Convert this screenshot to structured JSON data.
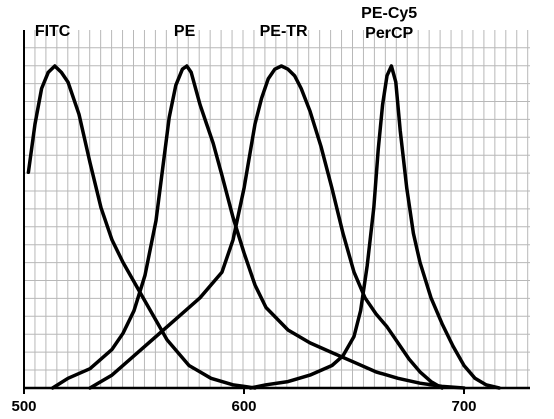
{
  "chart_data": {
    "type": "line",
    "title": "",
    "xlabel": "",
    "ylabel": "",
    "xlim": [
      500,
      730
    ],
    "ylim": [
      0,
      1.05
    ],
    "grid": true,
    "x_ticks": [
      "500",
      "600",
      "700"
    ],
    "x_tick_values": [
      500,
      600,
      700
    ],
    "colors": {
      "line": "#000000",
      "grid": "#b8b8b8",
      "axis": "#000000",
      "background": "#ffffff"
    },
    "series": [
      {
        "name": "FITC",
        "x": [
          502,
          505,
          508,
          511,
          514,
          517,
          520,
          525,
          530,
          535,
          540,
          545,
          550,
          555,
          560,
          565,
          570,
          575,
          580,
          585,
          590,
          595,
          600,
          605
        ],
        "y": [
          0.67,
          0.82,
          0.93,
          0.98,
          1.0,
          0.98,
          0.95,
          0.85,
          0.7,
          0.56,
          0.46,
          0.39,
          0.33,
          0.27,
          0.21,
          0.15,
          0.11,
          0.07,
          0.05,
          0.03,
          0.02,
          0.01,
          0.005,
          0.0
        ]
      },
      {
        "name": "PE",
        "x": [
          513,
          520,
          530,
          540,
          545,
          550,
          555,
          560,
          563,
          566,
          569,
          572,
          574,
          576,
          578,
          580,
          583,
          586,
          590,
          595,
          600,
          605,
          610,
          620,
          630,
          640,
          650,
          660,
          670,
          680,
          690,
          700
        ],
        "y": [
          0.0,
          0.03,
          0.06,
          0.12,
          0.17,
          0.24,
          0.35,
          0.52,
          0.68,
          0.84,
          0.94,
          0.99,
          1.0,
          0.98,
          0.93,
          0.88,
          0.82,
          0.76,
          0.66,
          0.53,
          0.42,
          0.32,
          0.25,
          0.18,
          0.14,
          0.11,
          0.08,
          0.05,
          0.03,
          0.015,
          0.005,
          0.0
        ]
      },
      {
        "name": "PE-TR",
        "x": [
          530,
          540,
          550,
          560,
          570,
          580,
          590,
          595,
          600,
          605,
          608,
          611,
          614,
          617,
          620,
          623,
          626,
          630,
          635,
          640,
          645,
          650,
          655,
          660,
          665,
          670,
          675,
          680,
          685,
          690
        ],
        "y": [
          0.0,
          0.04,
          0.1,
          0.16,
          0.22,
          0.28,
          0.36,
          0.46,
          0.62,
          0.82,
          0.9,
          0.96,
          0.99,
          1.0,
          0.99,
          0.97,
          0.93,
          0.86,
          0.75,
          0.62,
          0.48,
          0.36,
          0.28,
          0.23,
          0.19,
          0.14,
          0.09,
          0.05,
          0.02,
          0.0
        ]
      },
      {
        "name": "PE-Cy5 PerCP",
        "x": [
          603,
          610,
          620,
          630,
          640,
          645,
          650,
          653,
          656,
          659,
          661,
          663,
          665,
          667,
          669,
          671,
          674,
          677,
          680,
          685,
          690,
          695,
          700,
          705,
          710,
          716
        ],
        "y": [
          0.0,
          0.01,
          0.02,
          0.04,
          0.07,
          0.1,
          0.16,
          0.24,
          0.38,
          0.56,
          0.74,
          0.88,
          0.97,
          1.0,
          0.95,
          0.8,
          0.62,
          0.48,
          0.39,
          0.28,
          0.2,
          0.13,
          0.07,
          0.03,
          0.01,
          0.0
        ]
      }
    ],
    "series_labels": [
      {
        "lines": [
          "FITC"
        ],
        "near_x": 513
      },
      {
        "lines": [
          "PE"
        ],
        "near_x": 573
      },
      {
        "lines": [
          "PE-TR"
        ],
        "near_x": 618
      },
      {
        "lines": [
          "PE-Cy5",
          "PerCP"
        ],
        "near_x": 666
      }
    ]
  }
}
